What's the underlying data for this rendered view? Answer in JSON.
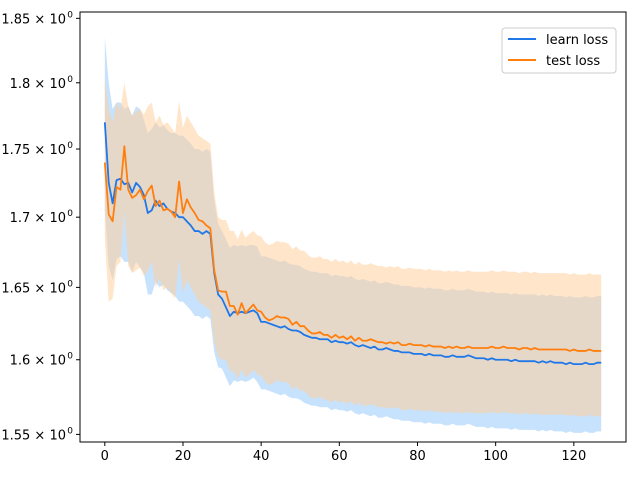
{
  "chart_data": {
    "type": "line",
    "title": "",
    "xlabel": "",
    "ylabel": "",
    "yscale": "log",
    "xlim": [
      -6.35,
      133.35
    ],
    "ylim": [
      1.545,
      1.855
    ],
    "xticks": [
      0,
      20,
      40,
      60,
      80,
      100,
      120
    ],
    "yticks": [
      1.55,
      1.6,
      1.65,
      1.7,
      1.75,
      1.8,
      1.85
    ],
    "ytick_labels": [
      {
        "base": "1.55 × 10",
        "exp": "0"
      },
      {
        "base": "1.6 × 10",
        "exp": "0"
      },
      {
        "base": "1.65 × 10",
        "exp": "0"
      },
      {
        "base": "1.7 × 10",
        "exp": "0"
      },
      {
        "base": "1.75 × 10",
        "exp": "0"
      },
      {
        "base": "1.8 × 10",
        "exp": "0"
      },
      {
        "base": "1.85 × 10",
        "exp": "0"
      }
    ],
    "grid": false,
    "legend_position": "top-right",
    "x_step": 1,
    "series": [
      {
        "name": "learn loss",
        "color": "#1f77e8",
        "band_color": "#a9d2fb",
        "values": [
          1.77,
          1.725,
          1.71,
          1.727,
          1.728,
          1.724,
          1.725,
          1.718,
          1.725,
          1.722,
          1.716,
          1.703,
          1.705,
          1.712,
          1.708,
          1.71,
          1.706,
          1.704,
          1.703,
          1.7,
          1.7,
          1.697,
          1.694,
          1.69,
          1.69,
          1.688,
          1.69,
          1.688,
          1.66,
          1.645,
          1.642,
          1.636,
          1.63,
          1.633,
          1.632,
          1.633,
          1.632,
          1.633,
          1.634,
          1.632,
          1.626,
          1.626,
          1.625,
          1.624,
          1.623,
          1.622,
          1.623,
          1.621,
          1.62,
          1.62,
          1.619,
          1.617,
          1.616,
          1.615,
          1.615,
          1.614,
          1.614,
          1.614,
          1.612,
          1.613,
          1.612,
          1.612,
          1.611,
          1.612,
          1.61,
          1.609,
          1.61,
          1.609,
          1.608,
          1.609,
          1.607,
          1.607,
          1.608,
          1.607,
          1.606,
          1.606,
          1.605,
          1.605,
          1.605,
          1.604,
          1.604,
          1.604,
          1.603,
          1.604,
          1.603,
          1.603,
          1.603,
          1.602,
          1.602,
          1.603,
          1.602,
          1.602,
          1.602,
          1.603,
          1.602,
          1.601,
          1.601,
          1.601,
          1.6,
          1.601,
          1.6,
          1.6,
          1.6,
          1.6,
          1.599,
          1.6,
          1.599,
          1.599,
          1.599,
          1.599,
          1.599,
          1.598,
          1.599,
          1.598,
          1.599,
          1.598,
          1.598,
          1.598,
          1.597,
          1.598,
          1.597,
          1.597,
          1.597,
          1.598,
          1.597,
          1.597,
          1.598,
          1.598
        ],
        "upper": [
          1.835,
          1.8,
          1.78,
          1.785,
          1.785,
          1.78,
          1.782,
          1.775,
          1.782,
          1.78,
          1.772,
          1.762,
          1.765,
          1.77,
          1.766,
          1.768,
          1.764,
          1.762,
          1.762,
          1.76,
          1.76,
          1.757,
          1.754,
          1.75,
          1.75,
          1.748,
          1.75,
          1.748,
          1.712,
          1.695,
          1.69,
          1.684,
          1.678,
          1.68,
          1.679,
          1.68,
          1.679,
          1.68,
          1.68,
          1.679,
          1.672,
          1.672,
          1.671,
          1.67,
          1.669,
          1.668,
          1.669,
          1.667,
          1.666,
          1.666,
          1.665,
          1.663,
          1.662,
          1.661,
          1.661,
          1.66,
          1.66,
          1.66,
          1.658,
          1.659,
          1.658,
          1.658,
          1.657,
          1.658,
          1.656,
          1.655,
          1.656,
          1.655,
          1.654,
          1.655,
          1.653,
          1.653,
          1.654,
          1.653,
          1.652,
          1.652,
          1.651,
          1.651,
          1.651,
          1.65,
          1.65,
          1.65,
          1.649,
          1.65,
          1.649,
          1.649,
          1.649,
          1.648,
          1.648,
          1.649,
          1.648,
          1.648,
          1.648,
          1.649,
          1.648,
          1.647,
          1.647,
          1.647,
          1.646,
          1.647,
          1.646,
          1.646,
          1.646,
          1.646,
          1.645,
          1.646,
          1.645,
          1.645,
          1.645,
          1.645,
          1.645,
          1.644,
          1.645,
          1.644,
          1.645,
          1.644,
          1.644,
          1.644,
          1.643,
          1.644,
          1.643,
          1.643,
          1.643,
          1.644,
          1.643,
          1.643,
          1.644,
          1.644
        ],
        "lower": [
          1.705,
          1.665,
          1.655,
          1.67,
          1.672,
          1.668,
          1.668,
          1.661,
          1.668,
          1.664,
          1.66,
          1.645,
          1.645,
          1.654,
          1.65,
          1.652,
          1.648,
          1.646,
          1.644,
          1.64,
          1.64,
          1.637,
          1.634,
          1.63,
          1.63,
          1.628,
          1.63,
          1.628,
          1.605,
          1.595,
          1.594,
          1.588,
          1.582,
          1.586,
          1.585,
          1.586,
          1.585,
          1.586,
          1.588,
          1.585,
          1.58,
          1.58,
          1.579,
          1.578,
          1.577,
          1.576,
          1.577,
          1.575,
          1.574,
          1.574,
          1.573,
          1.571,
          1.57,
          1.569,
          1.569,
          1.568,
          1.568,
          1.568,
          1.566,
          1.567,
          1.566,
          1.566,
          1.565,
          1.566,
          1.564,
          1.563,
          1.564,
          1.563,
          1.562,
          1.563,
          1.561,
          1.561,
          1.562,
          1.561,
          1.56,
          1.56,
          1.559,
          1.559,
          1.559,
          1.558,
          1.558,
          1.558,
          1.557,
          1.558,
          1.557,
          1.557,
          1.557,
          1.556,
          1.556,
          1.557,
          1.556,
          1.556,
          1.556,
          1.557,
          1.556,
          1.555,
          1.555,
          1.555,
          1.554,
          1.555,
          1.554,
          1.554,
          1.554,
          1.554,
          1.553,
          1.554,
          1.553,
          1.553,
          1.553,
          1.553,
          1.553,
          1.552,
          1.553,
          1.552,
          1.553,
          1.552,
          1.552,
          1.552,
          1.551,
          1.552,
          1.551,
          1.551,
          1.551,
          1.552,
          1.551,
          1.551,
          1.552,
          1.552
        ]
      },
      {
        "name": "test loss",
        "color": "#ff7f0e",
        "band_color": "#ffcf9e",
        "values": [
          1.74,
          1.702,
          1.697,
          1.722,
          1.72,
          1.752,
          1.72,
          1.714,
          1.716,
          1.72,
          1.713,
          1.719,
          1.723,
          1.708,
          1.712,
          1.705,
          1.706,
          1.704,
          1.7,
          1.726,
          1.703,
          1.713,
          1.707,
          1.703,
          1.698,
          1.697,
          1.694,
          1.692,
          1.662,
          1.648,
          1.647,
          1.647,
          1.637,
          1.637,
          1.631,
          1.639,
          1.632,
          1.635,
          1.638,
          1.634,
          1.633,
          1.629,
          1.627,
          1.628,
          1.63,
          1.629,
          1.629,
          1.628,
          1.624,
          1.626,
          1.623,
          1.623,
          1.62,
          1.618,
          1.618,
          1.619,
          1.617,
          1.617,
          1.615,
          1.617,
          1.615,
          1.616,
          1.614,
          1.616,
          1.613,
          1.615,
          1.613,
          1.613,
          1.614,
          1.613,
          1.612,
          1.612,
          1.611,
          1.612,
          1.611,
          1.612,
          1.61,
          1.61,
          1.611,
          1.61,
          1.61,
          1.61,
          1.609,
          1.61,
          1.609,
          1.609,
          1.609,
          1.608,
          1.609,
          1.608,
          1.609,
          1.608,
          1.608,
          1.609,
          1.608,
          1.608,
          1.608,
          1.608,
          1.608,
          1.609,
          1.608,
          1.608,
          1.609,
          1.608,
          1.608,
          1.608,
          1.607,
          1.608,
          1.608,
          1.607,
          1.608,
          1.607,
          1.607,
          1.607,
          1.607,
          1.607,
          1.607,
          1.607,
          1.607,
          1.606,
          1.607,
          1.606,
          1.606,
          1.606,
          1.607,
          1.606,
          1.606,
          1.606
        ],
        "upper": [
          1.805,
          1.78,
          1.77,
          1.785,
          1.78,
          1.8,
          1.782,
          1.775,
          1.778,
          1.78,
          1.776,
          1.782,
          1.785,
          1.77,
          1.775,
          1.768,
          1.77,
          1.766,
          1.762,
          1.786,
          1.766,
          1.775,
          1.77,
          1.765,
          1.76,
          1.758,
          1.756,
          1.754,
          1.718,
          1.7,
          1.698,
          1.698,
          1.69,
          1.69,
          1.684,
          1.691,
          1.685,
          1.688,
          1.69,
          1.687,
          1.686,
          1.682,
          1.68,
          1.681,
          1.683,
          1.682,
          1.682,
          1.681,
          1.677,
          1.679,
          1.676,
          1.676,
          1.673,
          1.671,
          1.671,
          1.672,
          1.67,
          1.67,
          1.668,
          1.67,
          1.668,
          1.669,
          1.667,
          1.669,
          1.666,
          1.668,
          1.666,
          1.666,
          1.667,
          1.666,
          1.665,
          1.665,
          1.664,
          1.665,
          1.664,
          1.665,
          1.663,
          1.663,
          1.664,
          1.663,
          1.663,
          1.663,
          1.662,
          1.663,
          1.662,
          1.662,
          1.662,
          1.661,
          1.662,
          1.661,
          1.662,
          1.661,
          1.661,
          1.662,
          1.661,
          1.661,
          1.661,
          1.661,
          1.661,
          1.662,
          1.661,
          1.661,
          1.662,
          1.661,
          1.661,
          1.661,
          1.66,
          1.661,
          1.661,
          1.66,
          1.661,
          1.66,
          1.66,
          1.66,
          1.66,
          1.66,
          1.66,
          1.66,
          1.66,
          1.659,
          1.66,
          1.659,
          1.659,
          1.659,
          1.66,
          1.659,
          1.659,
          1.659
        ],
        "lower": [
          1.685,
          1.64,
          1.642,
          1.665,
          1.668,
          1.705,
          1.665,
          1.66,
          1.662,
          1.664,
          1.658,
          1.662,
          1.668,
          1.65,
          1.656,
          1.648,
          1.65,
          1.646,
          1.642,
          1.67,
          1.646,
          1.655,
          1.65,
          1.645,
          1.64,
          1.638,
          1.636,
          1.634,
          1.612,
          1.602,
          1.6,
          1.6,
          1.592,
          1.592,
          1.587,
          1.593,
          1.588,
          1.59,
          1.593,
          1.59,
          1.589,
          1.585,
          1.583,
          1.584,
          1.586,
          1.585,
          1.585,
          1.584,
          1.58,
          1.582,
          1.579,
          1.579,
          1.576,
          1.574,
          1.574,
          1.575,
          1.573,
          1.573,
          1.571,
          1.573,
          1.571,
          1.572,
          1.57,
          1.572,
          1.569,
          1.571,
          1.569,
          1.569,
          1.57,
          1.569,
          1.568,
          1.568,
          1.567,
          1.568,
          1.567,
          1.568,
          1.566,
          1.566,
          1.567,
          1.566,
          1.566,
          1.566,
          1.565,
          1.566,
          1.565,
          1.565,
          1.565,
          1.564,
          1.565,
          1.564,
          1.565,
          1.564,
          1.564,
          1.565,
          1.564,
          1.564,
          1.564,
          1.564,
          1.564,
          1.565,
          1.564,
          1.564,
          1.565,
          1.564,
          1.564,
          1.564,
          1.563,
          1.564,
          1.564,
          1.563,
          1.564,
          1.563,
          1.563,
          1.563,
          1.563,
          1.563,
          1.563,
          1.563,
          1.563,
          1.562,
          1.563,
          1.562,
          1.562,
          1.562,
          1.563,
          1.562,
          1.562,
          1.562
        ]
      }
    ]
  }
}
